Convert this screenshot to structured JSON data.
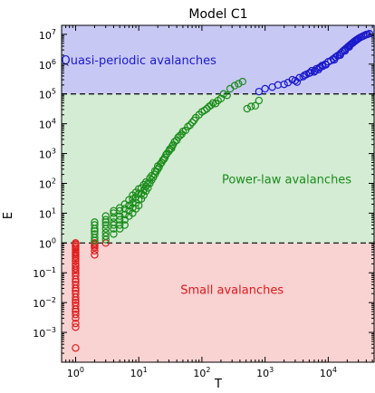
{
  "chart_data": {
    "type": "scatter",
    "title": "Model C1",
    "xlabel": "T",
    "ylabel": "E",
    "xscale": "log",
    "yscale": "log",
    "xlim": [
      0.6,
      55000
    ],
    "ylim": [
      0.0001,
      20000000
    ],
    "x_ticks": [
      {
        "value": 1,
        "base": "10",
        "exp": "0"
      },
      {
        "value": 10,
        "base": "10",
        "exp": "1"
      },
      {
        "value": 100,
        "base": "10",
        "exp": "2"
      },
      {
        "value": 1000,
        "base": "10",
        "exp": "3"
      },
      {
        "value": 10000,
        "base": "10",
        "exp": "4"
      }
    ],
    "y_ticks": [
      {
        "value": 0.001,
        "base": "10",
        "exp": "−3"
      },
      {
        "value": 0.01,
        "base": "10",
        "exp": "−2"
      },
      {
        "value": 0.1,
        "base": "10",
        "exp": "−1"
      },
      {
        "value": 1,
        "base": "10",
        "exp": "0"
      },
      {
        "value": 10,
        "base": "10",
        "exp": "1"
      },
      {
        "value": 100,
        "base": "10",
        "exp": "2"
      },
      {
        "value": 1000,
        "base": "10",
        "exp": "3"
      },
      {
        "value": 10000,
        "base": "10",
        "exp": "4"
      },
      {
        "value": 100000,
        "base": "10",
        "exp": "5"
      },
      {
        "value": 1000000,
        "base": "10",
        "exp": "6"
      },
      {
        "value": 10000000,
        "base": "10",
        "exp": "7"
      }
    ],
    "thresholds": [
      1,
      100000
    ],
    "regions": [
      {
        "label": "Quasi-periodic avalanches",
        "y_range": [
          100000,
          20000000
        ],
        "fill": "#c8c8f5",
        "text_color": "#1a1acc",
        "label_x": 10,
        "label_y": 1000000
      },
      {
        "label": "Power-law avalanches",
        "y_range": [
          1,
          100000
        ],
        "fill": "#d4ebd4",
        "text_color": "#1a8c1a",
        "label_x": 2200,
        "label_y": 100
      },
      {
        "label": "Small avalanches",
        "y_range": [
          0.0001,
          1
        ],
        "fill": "#f9d2d2",
        "text_color": "#e01a1a",
        "label_x": 300,
        "label_y": 0.02
      }
    ],
    "series": [
      {
        "name": "Small avalanches",
        "color": "#e01a1a",
        "x": [
          1,
          1,
          1,
          1,
          1,
          1,
          1,
          1,
          1,
          1,
          1,
          1,
          1,
          1,
          1,
          1,
          1,
          1,
          1,
          1,
          1,
          1,
          1,
          1,
          1,
          1,
          1,
          1,
          1,
          1,
          1,
          1,
          1,
          1,
          2,
          2,
          2,
          2,
          2,
          2,
          3
        ],
        "y": [
          1,
          0.9,
          0.8,
          0.7,
          0.6,
          0.5,
          0.45,
          0.4,
          0.35,
          0.3,
          0.25,
          0.2,
          0.17,
          0.14,
          0.12,
          0.1,
          0.08,
          0.06,
          0.05,
          0.04,
          0.03,
          0.025,
          0.02,
          0.015,
          0.012,
          0.01,
          0.008,
          0.006,
          0.005,
          0.004,
          0.003,
          0.002,
          0.0015,
          0.0003,
          1,
          0.9,
          0.8,
          0.7,
          0.55,
          0.4,
          1
        ]
      },
      {
        "name": "Power-law avalanches",
        "color": "#1a8c1a",
        "x": [
          2,
          2,
          2,
          2,
          2,
          2,
          2,
          3,
          3,
          3,
          3,
          3,
          3,
          3,
          3,
          4,
          4,
          4,
          4,
          4,
          4,
          4,
          5,
          5,
          5,
          5,
          5,
          5,
          6,
          6,
          6,
          6,
          6,
          7,
          7,
          7,
          7,
          8,
          8,
          8,
          8,
          8,
          9,
          9,
          9,
          9,
          10,
          10,
          10,
          10,
          11,
          11,
          11,
          12,
          12,
          12,
          13,
          13,
          13,
          14,
          14,
          15,
          15,
          16,
          16,
          17,
          18,
          18,
          19,
          20,
          20,
          21,
          22,
          23,
          24,
          25,
          26,
          27,
          28,
          30,
          31,
          33,
          34,
          35,
          37,
          40,
          42,
          45,
          48,
          50,
          55,
          60,
          65,
          70,
          75,
          80,
          90,
          100,
          110,
          120,
          130,
          140,
          150,
          165,
          180,
          200,
          220,
          250,
          280,
          330,
          380,
          440,
          520,
          600,
          700,
          800
        ],
        "y": [
          1.2,
          1.5,
          2,
          2.5,
          3,
          4,
          5,
          1.3,
          1.7,
          2.2,
          3,
          4,
          5,
          6,
          8,
          2,
          3,
          4,
          5,
          7,
          10,
          12,
          3,
          4,
          6,
          8,
          12,
          15,
          4,
          6,
          9,
          14,
          20,
          8,
          12,
          18,
          28,
          10,
          15,
          22,
          30,
          40,
          14,
          22,
          35,
          50,
          18,
          28,
          45,
          65,
          30,
          45,
          70,
          40,
          60,
          90,
          55,
          80,
          110,
          70,
          100,
          100,
          150,
          130,
          180,
          160,
          200,
          260,
          250,
          300,
          380,
          350,
          450,
          500,
          600,
          650,
          750,
          900,
          1000,
          1200,
          1400,
          1500,
          1800,
          2000,
          2500,
          2800,
          3500,
          4000,
          4500,
          5500,
          6000,
          8000,
          9000,
          11000,
          13000,
          16000,
          20000,
          25000,
          28000,
          32000,
          38000,
          42000,
          50000,
          48000,
          60000,
          70000,
          100000,
          90000,
          150000,
          190000,
          220000,
          260000,
          32000,
          38000,
          40000,
          60000
        ]
      },
      {
        "name": "Quasi-periodic avalanches",
        "color": "#1a1acc",
        "x": [
          800,
          1000,
          1300,
          1600,
          2000,
          2300,
          2700,
          3000,
          3500,
          4000,
          4500,
          5000,
          5500,
          6000,
          6500,
          7000,
          7500,
          8000,
          9000,
          10000,
          11000,
          12000,
          13000,
          14000,
          15000,
          16000,
          17000,
          18000,
          19000,
          20000,
          21000,
          22000,
          23000,
          24000,
          25000,
          26000,
          27000,
          28000,
          29000,
          30000,
          32000,
          34000,
          36000,
          38000,
          40000,
          42000,
          45000,
          3200,
          4200,
          5200,
          6200,
          7200,
          8200,
          9200,
          12500,
          15500,
          18500,
          21500,
          24500,
          27500
        ],
        "y": [
          120000,
          150000,
          170000,
          200000,
          210000,
          240000,
          300000,
          280000,
          350000,
          380000,
          450000,
          500000,
          600000,
          550000,
          700000,
          650000,
          800000,
          900000,
          1000000,
          1200000,
          1300000,
          1500000,
          1700000,
          1900000,
          2100000,
          2400000,
          2700000,
          3000000,
          3300000,
          3600000,
          4000000,
          4300000,
          4700000,
          5000000,
          5400000,
          5800000,
          6100000,
          6500000,
          6800000,
          7200000,
          7800000,
          8300000,
          8800000,
          9300000,
          9800000,
          10000000,
          10500000,
          250000,
          420000,
          520000,
          600000,
          750000,
          850000,
          950000,
          1400000,
          2000000,
          2800000,
          3800000,
          5200000,
          6300000
        ]
      }
    ]
  }
}
